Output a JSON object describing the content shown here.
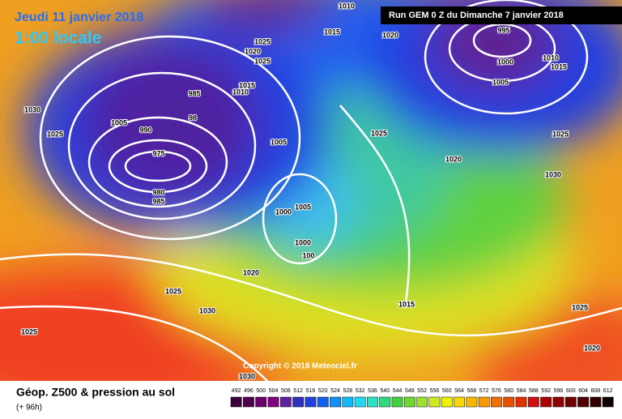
{
  "header": {
    "date": "Jeudi 11 janvier 2018",
    "time": "1:00 locale",
    "run": "Run GEM 0 Z du Dimanche 7 janvier 2018"
  },
  "copyright": "Copyright © 2018 Meteociel.fr",
  "footer": {
    "title": "Géop. Z500 & pression au sol",
    "lead": "(+ 96h)"
  },
  "legend": {
    "scale": [
      492,
      496,
      500,
      504,
      508,
      512,
      516,
      520,
      524,
      528,
      532,
      536,
      540,
      544,
      548,
      552,
      556,
      560,
      564,
      568,
      572,
      576,
      580,
      584,
      588,
      592,
      596,
      600,
      604,
      608,
      612
    ]
  },
  "isobar_labels": [
    1010,
    1015,
    1020,
    995,
    1000,
    1005,
    1010,
    1015,
    1030,
    1025,
    1005,
    990,
    985,
    98,
    975,
    980,
    985,
    1025,
    1020,
    1025,
    1015,
    1010,
    1005,
    1025,
    1020,
    1025,
    1030,
    1005,
    1000,
    1000,
    100,
    1020,
    1025,
    1030,
    1025,
    1015,
    1025,
    1020,
    1030
  ]
}
